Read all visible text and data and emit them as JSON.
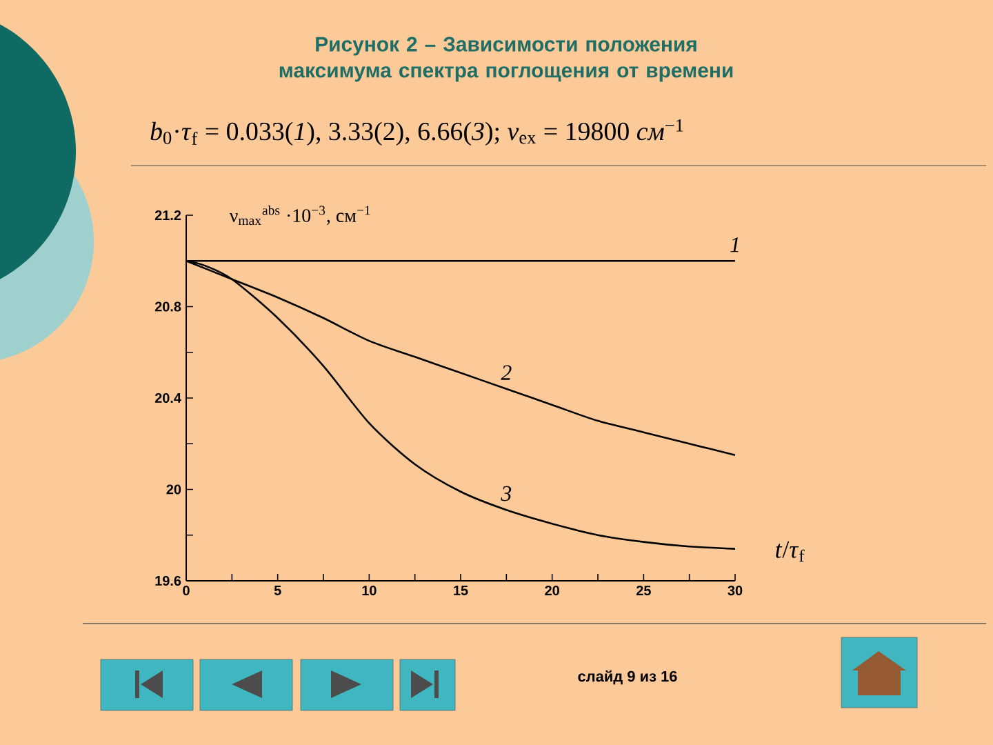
{
  "chart_data": {
    "type": "line",
    "title": "Рисунок 2 – Зависимости положения максимума спектра поглощения от времени",
    "subtitle": "*b*$_{0}$·*τ*$_{f}$ = 0.033(*1*), 3.33(2), 6.66(*3*);   *ν*$_{ex}$ = 19800 *см*$^{−1}$",
    "xlabel": "*t*/*τ*$_{f}$",
    "ylabel": "ν$_{max}$$^{abs}$ ·10$^{−3}$, см$^{−1}$",
    "annotations": [
      "слайд 9 из 16"
    ],
    "xlim": [
      0,
      30
    ],
    "ylim": [
      19.6,
      21.2
    ],
    "xticks": [
      0,
      {
        "value": 2.5,
        "label": null
      },
      5,
      {
        "value": 7.5,
        "label": null
      },
      10,
      {
        "value": 12.5,
        "label": null
      },
      15,
      {
        "value": 17.5,
        "label": null
      },
      20,
      {
        "value": 22.5,
        "label": null
      },
      25,
      {
        "value": 27.5,
        "label": null
      },
      30
    ],
    "yticks": [
      19.6,
      {
        "value": 19.8,
        "label": null
      },
      20,
      {
        "value": 20.2,
        "label": null
      },
      20.4,
      {
        "value": 20.6,
        "label": null
      },
      20.8,
      {
        "value": 21.0,
        "label": null
      },
      21.2
    ],
    "grid": false,
    "legend": false,
    "marker": "none",
    "line_style": "solid",
    "series": [
      {
        "name": "1",
        "color": "#000000",
        "x": [
          0,
          30
        ],
        "values": [
          21.0,
          21.0
        ]
      },
      {
        "name": "2",
        "color": "#000000",
        "x": [
          0,
          2.5,
          5,
          7.5,
          10,
          12.5,
          15,
          17.5,
          20,
          22.5,
          25,
          27.5,
          30
        ],
        "values": [
          21.0,
          20.92,
          20.84,
          20.75,
          20.65,
          20.58,
          20.51,
          20.44,
          20.37,
          20.3,
          20.25,
          20.2,
          20.15
        ]
      },
      {
        "name": "3",
        "color": "#000000",
        "x": [
          0,
          1,
          2.5,
          5,
          7.5,
          10,
          12.5,
          15,
          17.5,
          20,
          22.5,
          25,
          27.5,
          30
        ],
        "values": [
          21.0,
          20.98,
          20.92,
          20.75,
          20.54,
          20.29,
          20.11,
          19.99,
          19.91,
          19.85,
          19.8,
          19.77,
          19.75,
          19.74
        ]
      }
    ]
  }
}
